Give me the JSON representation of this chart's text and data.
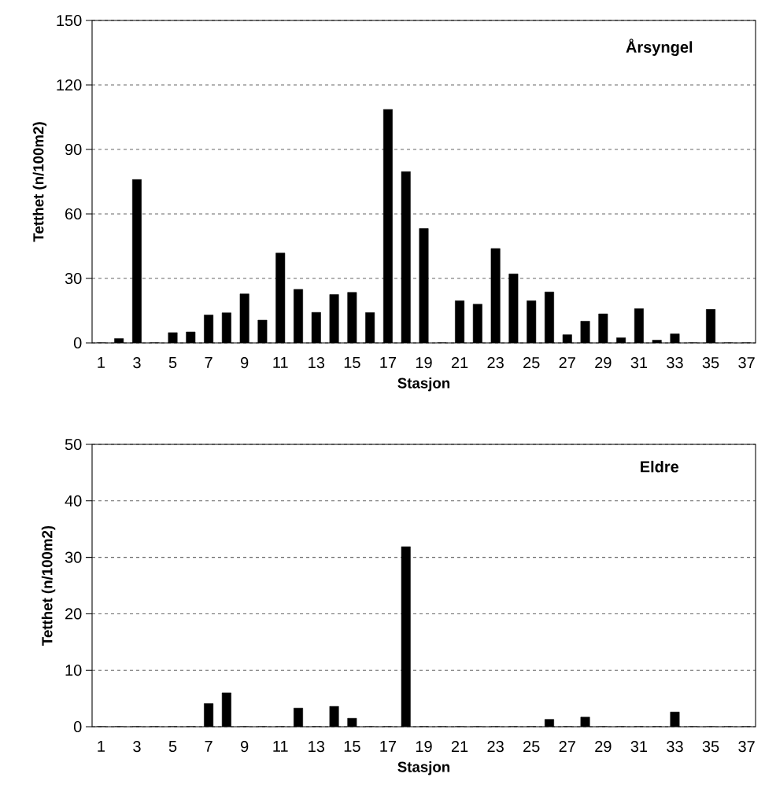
{
  "chart_data": [
    {
      "type": "bar",
      "title": "Årsyngel",
      "xlabel": "Stasjon",
      "ylabel": "Tetthet (n/100m2)",
      "categories": [
        "1",
        null,
        "3",
        null,
        "5",
        null,
        "7",
        null,
        "9",
        null,
        "11",
        null,
        "13",
        null,
        "15",
        null,
        "17",
        null,
        "19",
        null,
        "21",
        null,
        "23",
        null,
        "25",
        null,
        "27",
        null,
        "29",
        null,
        "31",
        null,
        "33",
        null,
        "35",
        null,
        "37"
      ],
      "values": [
        0,
        2,
        76,
        0,
        4.8,
        5.1,
        13,
        14,
        22.8,
        10.6,
        41.8,
        24.9,
        14.2,
        22.5,
        23.5,
        14.1,
        108.6,
        79.7,
        53.2,
        0,
        19.6,
        18,
        43.9,
        32.1,
        19.6,
        23.7,
        3.8,
        10.1,
        13.5,
        2.4,
        15.9,
        1.3,
        4.2,
        0,
        15.6,
        0,
        0
      ],
      "color": "#000000",
      "ylim": [
        0,
        150
      ],
      "yticks": [
        0,
        30,
        60,
        90,
        120,
        150
      ],
      "grid": "y"
    },
    {
      "type": "bar",
      "title": "Eldre",
      "xlabel": "Stasjon",
      "ylabel": "Tetthet (n/100m2)",
      "categories": [
        "1",
        null,
        "3",
        null,
        "5",
        null,
        "7",
        null,
        "9",
        null,
        "11",
        null,
        "13",
        null,
        "15",
        null,
        "17",
        null,
        "19",
        null,
        "21",
        null,
        "23",
        null,
        "25",
        null,
        "27",
        null,
        "29",
        null,
        "31",
        null,
        "33",
        null,
        "35",
        null,
        "37"
      ],
      "values": [
        0,
        0,
        0,
        0,
        0,
        0,
        4.1,
        6,
        0,
        0,
        0,
        3.3,
        0,
        3.6,
        1.5,
        0,
        0,
        31.9,
        0,
        0,
        0,
        0,
        0,
        0,
        0,
        1.3,
        0,
        1.7,
        0,
        0,
        0,
        0,
        2.6,
        0,
        0,
        0,
        0
      ],
      "color": "#000000",
      "ylim": [
        0,
        50
      ],
      "yticks": [
        0,
        10,
        20,
        30,
        40,
        50
      ],
      "grid": "y"
    }
  ]
}
